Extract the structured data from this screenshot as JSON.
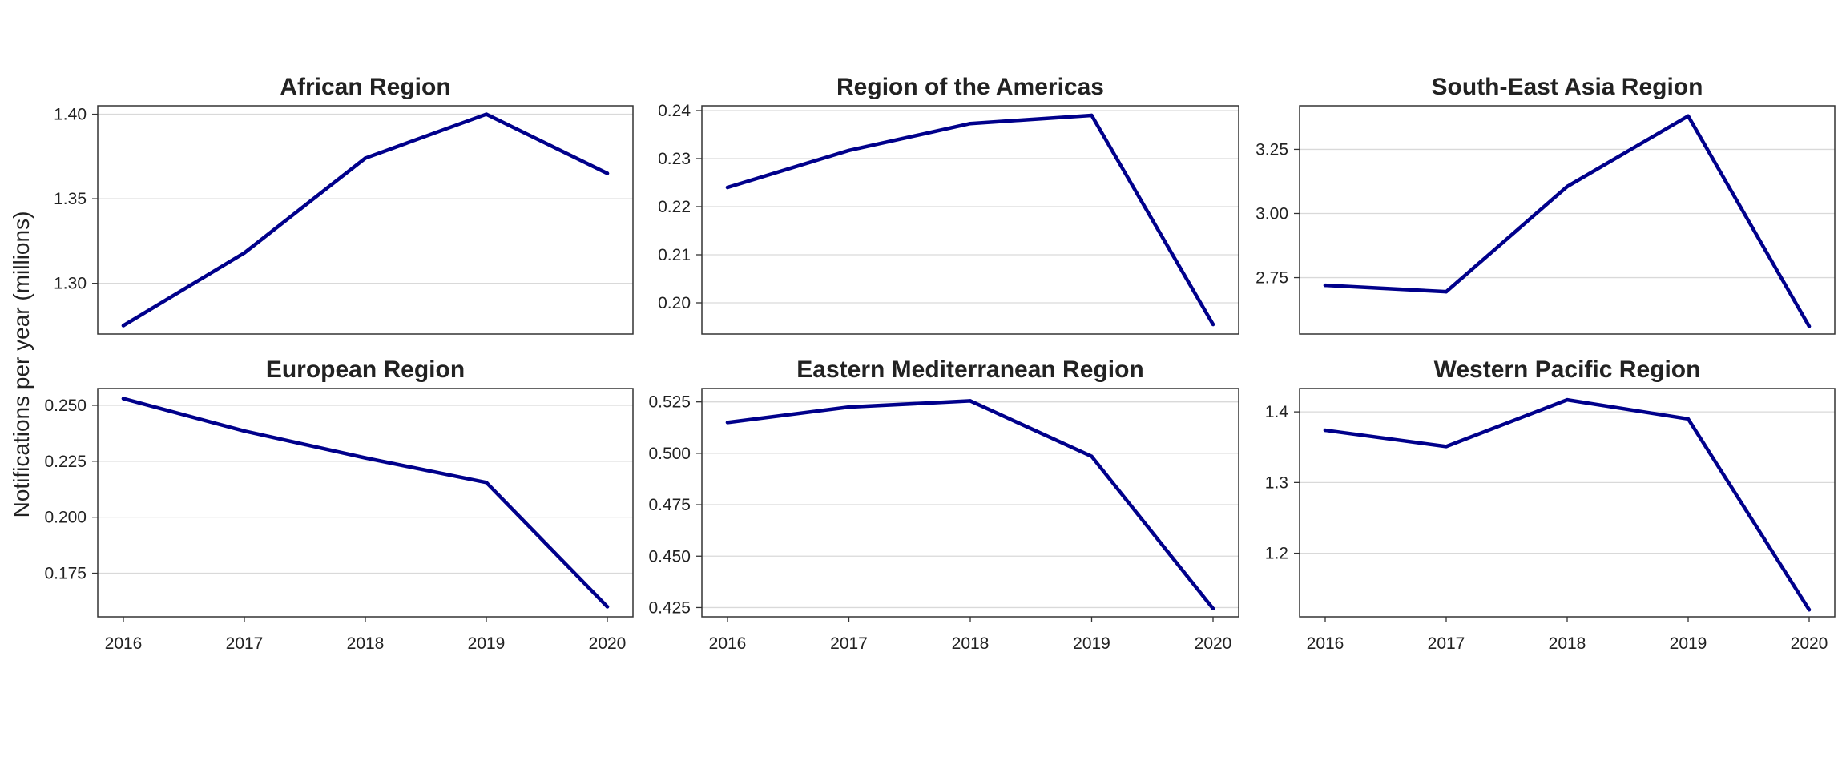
{
  "ylabel": "Notifications per year (millions)",
  "colors": {
    "line": "#00008b",
    "grid": "#d9d9d9",
    "frame": "#333333"
  },
  "chart_data": [
    {
      "type": "line",
      "title": "African Region",
      "x": [
        2016,
        2017,
        2018,
        2019,
        2020
      ],
      "series": [
        {
          "values": [
            1.275,
            1.318,
            1.374,
            1.4,
            1.365
          ]
        }
      ],
      "ylim": [
        1.27,
        1.405
      ],
      "yticks": [
        1.3,
        1.35,
        1.4
      ],
      "ytick_labels": [
        "1.30",
        "1.35",
        "1.40"
      ],
      "show_xticks": false
    },
    {
      "type": "line",
      "title": "Region of the Americas",
      "x": [
        2016,
        2017,
        2018,
        2019,
        2020
      ],
      "series": [
        {
          "values": [
            0.224,
            0.2317,
            0.2373,
            0.239,
            0.1955
          ]
        }
      ],
      "ylim": [
        0.1935,
        0.241
      ],
      "yticks": [
        0.2,
        0.21,
        0.22,
        0.23,
        0.24
      ],
      "ytick_labels": [
        "0.20",
        "0.21",
        "0.22",
        "0.23",
        "0.24"
      ],
      "show_xticks": false
    },
    {
      "type": "line",
      "title": "South-East Asia Region",
      "x": [
        2016,
        2017,
        2018,
        2019,
        2020
      ],
      "series": [
        {
          "values": [
            2.72,
            2.695,
            3.105,
            3.38,
            2.56
          ]
        }
      ],
      "ylim": [
        2.53,
        3.42
      ],
      "yticks": [
        2.75,
        3.0,
        3.25
      ],
      "ytick_labels": [
        "2.75",
        "3.00",
        "3.25"
      ],
      "show_xticks": false
    },
    {
      "type": "line",
      "title": "European Region",
      "x": [
        2016,
        2017,
        2018,
        2019,
        2020
      ],
      "series": [
        {
          "values": [
            0.253,
            0.2385,
            0.2265,
            0.2155,
            0.16
          ]
        }
      ],
      "ylim": [
        0.1555,
        0.2575
      ],
      "yticks": [
        0.175,
        0.2,
        0.225,
        0.25
      ],
      "ytick_labels": [
        "0.175",
        "0.200",
        "0.225",
        "0.250"
      ],
      "show_xticks": true
    },
    {
      "type": "line",
      "title": "Eastern Mediterranean Region",
      "x": [
        2016,
        2017,
        2018,
        2019,
        2020
      ],
      "series": [
        {
          "values": [
            0.515,
            0.5225,
            0.5255,
            0.4985,
            0.4245
          ]
        }
      ],
      "ylim": [
        0.4205,
        0.5315
      ],
      "yticks": [
        0.425,
        0.45,
        0.475,
        0.5,
        0.525
      ],
      "ytick_labels": [
        "0.425",
        "0.450",
        "0.475",
        "0.500",
        "0.525"
      ],
      "show_xticks": true
    },
    {
      "type": "line",
      "title": "Western Pacific Region",
      "x": [
        2016,
        2017,
        2018,
        2019,
        2020
      ],
      "series": [
        {
          "values": [
            1.374,
            1.351,
            1.417,
            1.39,
            1.12
          ]
        }
      ],
      "ylim": [
        1.11,
        1.433
      ],
      "yticks": [
        1.2,
        1.3,
        1.4
      ],
      "ytick_labels": [
        "1.2",
        "1.3",
        "1.4"
      ],
      "show_xticks": true
    }
  ]
}
